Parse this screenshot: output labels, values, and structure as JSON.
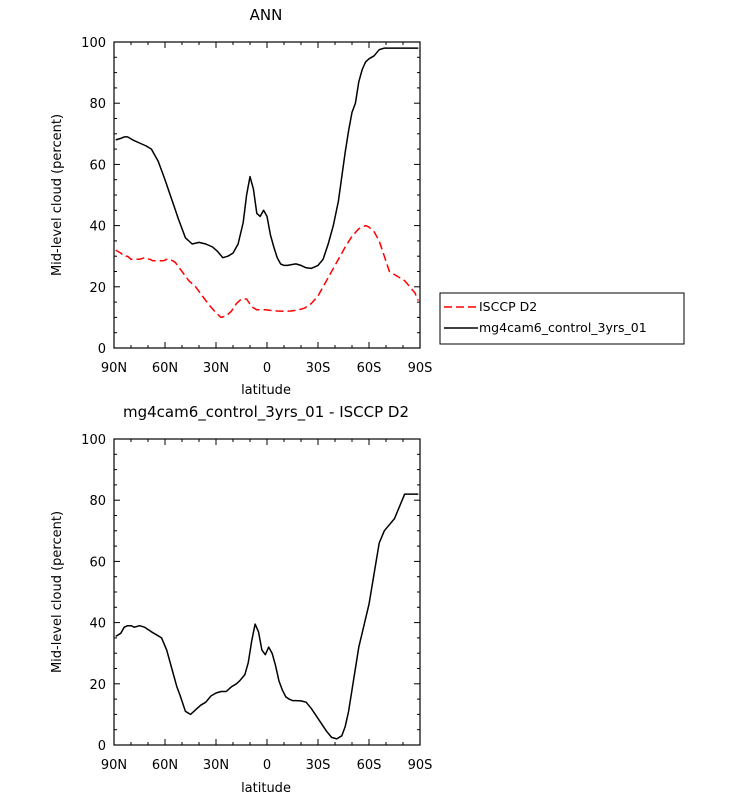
{
  "chart_data": [
    {
      "type": "line",
      "title": "ANN",
      "xlabel": "latitude",
      "ylabel": "Mid-level cloud (percent)",
      "xlim": [
        90,
        -90
      ],
      "ylim": [
        0,
        100
      ],
      "yticks": [
        0,
        20,
        40,
        60,
        80,
        100
      ],
      "xticks": [
        {
          "value": 90,
          "label": "90N"
        },
        {
          "value": 60,
          "label": "60N"
        },
        {
          "value": 30,
          "label": "30N"
        },
        {
          "value": 0,
          "label": "0"
        },
        {
          "value": -30,
          "label": "30S"
        },
        {
          "value": -60,
          "label": "60S"
        },
        {
          "value": -90,
          "label": "90S"
        }
      ],
      "legend": {
        "placement": "right"
      },
      "series": [
        {
          "name": "ISCCP D2",
          "color": "#ff0000",
          "dash": true,
          "x": [
            89,
            86,
            84,
            82,
            80,
            77,
            75,
            72,
            69,
            67,
            64,
            61,
            59,
            57,
            54,
            50,
            46,
            42,
            38,
            34,
            30,
            27,
            24,
            21,
            18,
            15,
            12,
            9,
            6,
            4,
            1,
            -2,
            -6,
            -10,
            -14,
            -18,
            -22,
            -26,
            -30,
            -34,
            -38,
            -42,
            -46,
            -50,
            -54,
            -58,
            -60,
            -63,
            -66,
            -69,
            -72,
            -75,
            -78,
            -81,
            -84,
            -87,
            -89
          ],
          "values": [
            32,
            31,
            30,
            30,
            29,
            29,
            29,
            29.5,
            29,
            28.5,
            28.5,
            28.5,
            29,
            29,
            28,
            25,
            22,
            20,
            17,
            14,
            11.5,
            10,
            10.5,
            12,
            14.5,
            16,
            16,
            13.5,
            12.5,
            12.5,
            12.5,
            12.3,
            12.1,
            12,
            12.1,
            12.4,
            13,
            14.5,
            17,
            21,
            25,
            29,
            33,
            36.5,
            39,
            40,
            39.5,
            38,
            35,
            30,
            25,
            24,
            23,
            22,
            20,
            18,
            15.5
          ]
        },
        {
          "name": "mg4cam6_control_3yrs_01",
          "color": "#000000",
          "dash": false,
          "x": [
            89,
            86,
            84,
            82,
            79,
            75,
            71,
            68,
            64,
            60,
            56,
            52,
            48,
            44,
            40,
            36,
            32,
            29,
            26,
            23,
            20,
            17,
            14,
            12,
            10,
            8,
            6,
            4,
            2,
            0,
            -2,
            -4,
            -6,
            -8,
            -10,
            -12,
            -14,
            -17,
            -20,
            -23,
            -26,
            -30,
            -33,
            -36,
            -39,
            -42,
            -44,
            -46,
            -48,
            -50,
            -52,
            -54,
            -56,
            -58,
            -60,
            -63,
            -66,
            -69,
            -72,
            -75,
            -78,
            -81,
            -84,
            -87,
            -89
          ],
          "values": [
            68,
            68.5,
            69,
            69,
            68,
            67,
            66,
            65,
            61,
            55,
            48.5,
            42,
            36,
            34,
            34.5,
            34,
            33,
            31.5,
            29.5,
            30,
            31,
            34,
            41,
            50,
            56,
            52,
            44,
            43,
            45,
            43,
            37,
            33,
            29.5,
            27.5,
            27,
            27,
            27.2,
            27.5,
            27,
            26.2,
            26,
            27,
            29,
            34,
            40,
            48,
            56,
            64,
            71,
            77,
            80,
            87,
            91,
            93.5,
            94.5,
            95.5,
            97.5,
            98,
            98,
            98,
            98,
            98,
            98,
            98,
            98
          ]
        }
      ]
    },
    {
      "type": "line",
      "title": "mg4cam6_control_3yrs_01 - ISCCP D2",
      "xlabel": "latitude",
      "ylabel": "Mid-level cloud (percent)",
      "xlim": [
        90,
        -90
      ],
      "ylim": [
        0,
        100
      ],
      "yticks": [
        0,
        20,
        40,
        60,
        80,
        100
      ],
      "xticks": [
        {
          "value": 90,
          "label": "90N"
        },
        {
          "value": 60,
          "label": "60N"
        },
        {
          "value": 30,
          "label": "30N"
        },
        {
          "value": 0,
          "label": "0"
        },
        {
          "value": -30,
          "label": "30S"
        },
        {
          "value": -60,
          "label": "60S"
        },
        {
          "value": -90,
          "label": "90S"
        }
      ],
      "series": [
        {
          "name": "mg4cam6_control_3yrs_01 - ISCCP D2",
          "color": "#000000",
          "dash": false,
          "x": [
            89,
            86,
            84,
            82,
            80,
            78,
            75,
            72,
            68,
            65,
            62,
            59,
            56,
            53,
            51,
            48,
            45,
            42,
            39,
            36,
            33,
            30,
            27,
            24,
            21,
            18,
            16,
            13,
            11,
            9,
            7,
            5,
            3,
            1,
            -1,
            -3,
            -5,
            -7,
            -9,
            -11,
            -13,
            -15,
            -17,
            -20,
            -23,
            -26,
            -29,
            -32,
            -35,
            -38,
            -41,
            -44,
            -46,
            -48,
            -50,
            -52,
            -54,
            -57,
            -60,
            -63,
            -66,
            -69,
            -72,
            -75,
            -78,
            -81,
            -84,
            -86,
            -89
          ],
          "values": [
            35.5,
            36.5,
            38.5,
            39,
            39,
            38.5,
            39,
            38.5,
            37,
            36,
            35,
            31,
            25,
            19,
            16,
            11,
            10,
            11.5,
            13,
            14,
            16,
            17,
            17.5,
            17.5,
            19,
            20,
            21,
            23,
            27,
            34,
            39.5,
            37,
            31,
            29.5,
            32,
            30,
            26,
            21,
            18,
            15.8,
            15,
            14.5,
            14.5,
            14.4,
            14,
            12,
            9.5,
            7,
            4.5,
            2.5,
            2,
            3,
            6,
            11,
            18,
            25,
            32,
            39,
            46,
            56,
            66,
            70,
            72,
            74,
            78,
            82,
            82,
            82,
            82
          ]
        }
      ]
    }
  ]
}
